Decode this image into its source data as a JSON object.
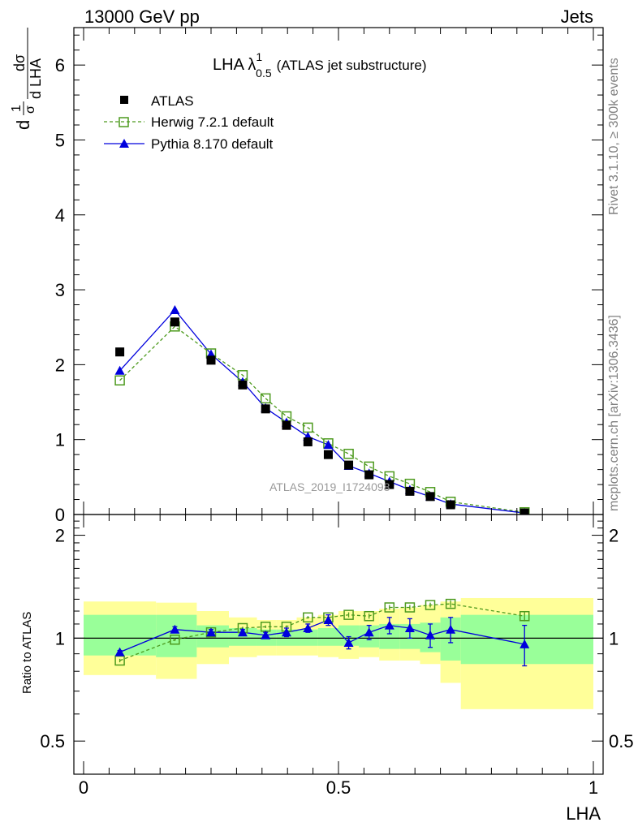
{
  "header": {
    "left": "13000 GeV pp",
    "right": "Jets",
    "side_top": "Rivet 3.1.10, ≥ 300k events",
    "side_bottom": "mcplots.cern.ch [arXiv:1306.3436]",
    "watermark": "ATLAS_2019_I1724098"
  },
  "colors": {
    "atlas": "#000000",
    "herwig": "#4d9a1e",
    "pythia": "#0000dd",
    "band_outer": "#ffff99",
    "band_inner": "#99ff99",
    "side_text": "#808080"
  },
  "chart_data": [
    {
      "type": "scatter",
      "panel": "main",
      "title": "LHA λ",
      "title_sup": "1",
      "title_sub": "0.5",
      "title_suffix": "(ATLAS jet substructure)",
      "ylabel": "1/σ dσ/dLHA",
      "ylabel_parts": {
        "one": "1",
        "sigma": "σ",
        "d": "d",
        "dsigma": "dσ",
        "dlha": "d LHA"
      },
      "xlim": [
        0,
        1
      ],
      "ylim": [
        0,
        6.5
      ],
      "yticks": [
        "0",
        "1",
        "2",
        "3",
        "4",
        "5",
        "6"
      ],
      "legend_position": "top-left",
      "x": [
        0.071,
        0.179,
        0.25,
        0.312,
        0.357,
        0.398,
        0.44,
        0.48,
        0.52,
        0.56,
        0.6,
        0.64,
        0.68,
        0.72,
        0.865
      ],
      "series": [
        {
          "name": "ATLAS",
          "style": "marker",
          "values": [
            2.17,
            2.57,
            2.06,
            1.73,
            1.41,
            1.19,
            0.97,
            0.8,
            0.66,
            0.53,
            0.4,
            0.31,
            0.24,
            0.13,
            0.02
          ]
        },
        {
          "name": "Herwig 7.2.1 default",
          "style": "dashed-open-square",
          "values": [
            1.79,
            2.51,
            2.15,
            1.86,
            1.55,
            1.31,
            1.16,
            0.95,
            0.81,
            0.64,
            0.51,
            0.41,
            0.3,
            0.17,
            0.03
          ]
        },
        {
          "name": "Pythia 8.170 default",
          "style": "solid-triangle",
          "values": [
            1.92,
            2.73,
            2.14,
            1.77,
            1.42,
            1.23,
            1.04,
            0.93,
            0.65,
            0.55,
            0.44,
            0.33,
            0.24,
            0.14,
            0.02
          ]
        }
      ]
    },
    {
      "type": "scatter",
      "panel": "ratio",
      "ylabel": "Ratio to ATLAS",
      "xlabel": "LHA",
      "xlim": [
        0,
        1
      ],
      "ylim": [
        0.4,
        2.3
      ],
      "yticks": [
        0.5,
        1,
        2
      ],
      "ytick_labels": [
        "0.5",
        "1",
        "2"
      ],
      "xticks": [
        0,
        0.5,
        1
      ],
      "xtick_labels": [
        "0",
        "0.5",
        "1"
      ],
      "bands": [
        {
          "x0": 0.0,
          "x1": 0.142,
          "inner": [
            0.89,
            1.17
          ],
          "outer": [
            0.78,
            1.28
          ]
        },
        {
          "x0": 0.142,
          "x1": 0.222,
          "inner": [
            0.88,
            1.17
          ],
          "outer": [
            0.76,
            1.27
          ]
        },
        {
          "x0": 0.222,
          "x1": 0.285,
          "inner": [
            0.94,
            1.09
          ],
          "outer": [
            0.84,
            1.2
          ]
        },
        {
          "x0": 0.285,
          "x1": 0.34,
          "inner": [
            0.95,
            1.07
          ],
          "outer": [
            0.88,
            1.15
          ]
        },
        {
          "x0": 0.34,
          "x1": 0.378,
          "inner": [
            0.95,
            1.06
          ],
          "outer": [
            0.89,
            1.13
          ]
        },
        {
          "x0": 0.378,
          "x1": 0.418,
          "inner": [
            0.95,
            1.06
          ],
          "outer": [
            0.89,
            1.13
          ]
        },
        {
          "x0": 0.418,
          "x1": 0.46,
          "inner": [
            0.95,
            1.06
          ],
          "outer": [
            0.89,
            1.15
          ]
        },
        {
          "x0": 0.46,
          "x1": 0.5,
          "inner": [
            0.95,
            1.07
          ],
          "outer": [
            0.88,
            1.17
          ]
        },
        {
          "x0": 0.5,
          "x1": 0.54,
          "inner": [
            0.95,
            1.09
          ],
          "outer": [
            0.87,
            1.2
          ]
        },
        {
          "x0": 0.54,
          "x1": 0.58,
          "inner": [
            0.94,
            1.09
          ],
          "outer": [
            0.88,
            1.2
          ]
        },
        {
          "x0": 0.58,
          "x1": 0.62,
          "inner": [
            0.93,
            1.1
          ],
          "outer": [
            0.86,
            1.22
          ]
        },
        {
          "x0": 0.62,
          "x1": 0.66,
          "inner": [
            0.93,
            1.1
          ],
          "outer": [
            0.86,
            1.23
          ]
        },
        {
          "x0": 0.66,
          "x1": 0.7,
          "inner": [
            0.91,
            1.11
          ],
          "outer": [
            0.84,
            1.25
          ]
        },
        {
          "x0": 0.7,
          "x1": 0.74,
          "inner": [
            0.86,
            1.15
          ],
          "outer": [
            0.74,
            1.28
          ]
        },
        {
          "x0": 0.74,
          "x1": 1.0,
          "inner": [
            0.84,
            1.17
          ],
          "outer": [
            0.62,
            1.31
          ]
        }
      ],
      "x": [
        0.071,
        0.179,
        0.25,
        0.312,
        0.357,
        0.398,
        0.44,
        0.48,
        0.52,
        0.56,
        0.6,
        0.64,
        0.68,
        0.72,
        0.865
      ],
      "series": [
        {
          "name": "Herwig 7.2.1 default",
          "values": [
            0.86,
            0.99,
            1.04,
            1.07,
            1.08,
            1.08,
            1.15,
            1.15,
            1.17,
            1.16,
            1.23,
            1.23,
            1.25,
            1.26,
            1.16
          ],
          "errors": [
            0.01,
            0.01,
            0.01,
            0.01,
            0.01,
            0.01,
            0.01,
            0.02,
            0.02,
            0.02,
            0.02,
            0.02,
            0.02,
            0.03,
            0.04
          ]
        },
        {
          "name": "Pythia 8.170 default",
          "values": [
            0.91,
            1.06,
            1.04,
            1.04,
            1.02,
            1.04,
            1.07,
            1.13,
            0.97,
            1.04,
            1.09,
            1.07,
            1.02,
            1.06,
            0.96
          ],
          "errors": [
            0.01,
            0.02,
            0.02,
            0.02,
            0.02,
            0.03,
            0.03,
            0.04,
            0.04,
            0.05,
            0.06,
            0.07,
            0.08,
            0.09,
            0.13
          ]
        }
      ]
    }
  ]
}
